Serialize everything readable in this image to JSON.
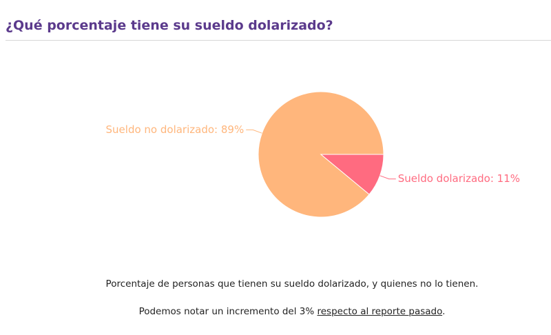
{
  "chart_data": {
    "type": "pie",
    "title": "¿Qué porcentaje tiene su sueldo dolarizado?",
    "values": [
      89,
      11
    ],
    "value_labels": [
      "Sueldo no dolarizado: 89%",
      "Sueldo dolarizado: 11%"
    ],
    "colors": [
      "#ffb67c",
      "#ff6b80"
    ]
  },
  "caption": {
    "description": "Porcentaje de personas que tienen su sueldo dolarizado, y quienes no lo tienen.",
    "note_before": "Podemos notar un incremento del 3%",
    "note_link": "respecto al reporte pasado",
    "note_after": "."
  }
}
